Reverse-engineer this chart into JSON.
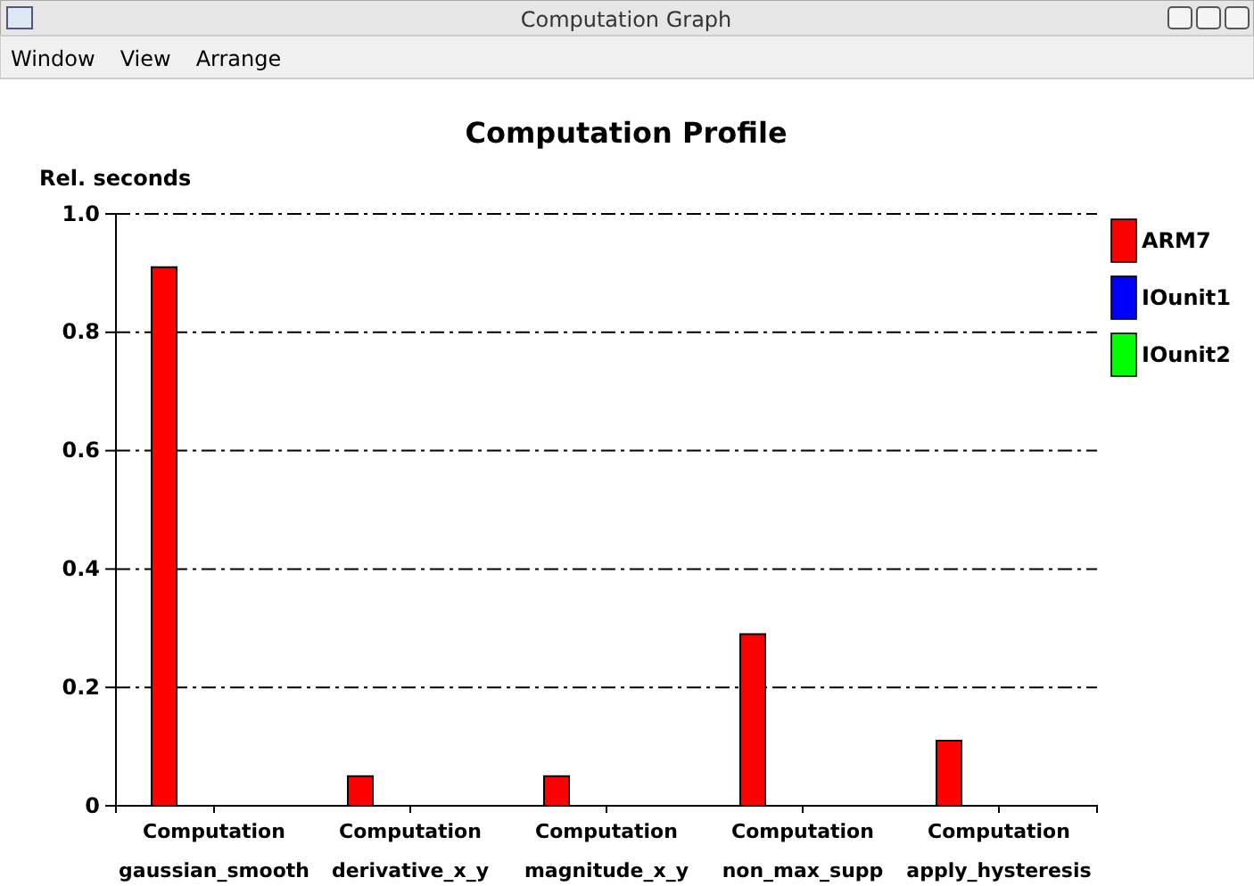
{
  "chart_data": {
    "type": "bar",
    "title": "Computation Profile",
    "ylabel": "Rel. seconds",
    "annotations": [
      "Computation Graph",
      "Window",
      "View",
      "Arrange"
    ],
    "categories": [
      "Computation\ngaussian_smooth",
      "Computation\nderivative_x_y",
      "Computation\nmagnitude_x_y",
      "Computation\nnon_max_supp",
      "Computation\napply_hysteresis"
    ],
    "series": [
      {
        "name": "ARM7",
        "color": "#ff0000",
        "values": [
          0.91,
          0.05,
          0.05,
          0.29,
          0.11
        ]
      },
      {
        "name": "IOunit1",
        "color": "#0000ff",
        "values": [
          0,
          0,
          0,
          0,
          0
        ]
      },
      {
        "name": "IOunit2",
        "color": "#00ff00",
        "values": [
          0,
          0,
          0,
          0,
          0
        ]
      }
    ],
    "ylim": [
      0,
      1
    ],
    "yticks": [
      0,
      0.2,
      0.4,
      0.6,
      0.8,
      {
        "value": 1,
        "label": "1.0"
      }
    ],
    "grid": "y",
    "legend": "top right"
  }
}
